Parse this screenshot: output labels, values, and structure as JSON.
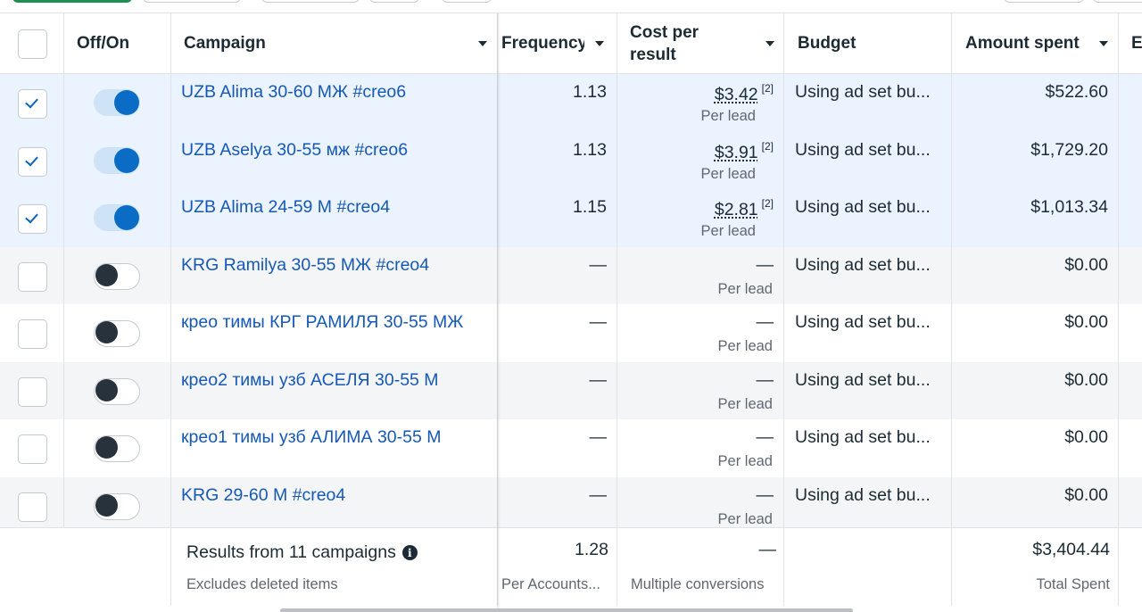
{
  "header": {
    "off_on": "Off/On",
    "campaign": "Campaign",
    "frequency": "Frequency",
    "cost_per_result_line1": "Cost per",
    "cost_per_result_line2": "result",
    "budget": "Budget",
    "amount_spent": "Amount spent",
    "next_col_initial": "E"
  },
  "rows": [
    {
      "selected": true,
      "active": true,
      "campaign": "UZB Alima 30-60 МЖ #creo6",
      "frequency": "1.13",
      "cost": "$3.42",
      "footnote": "[2]",
      "per": "Per lead",
      "budget": "Using ad set bu...",
      "amount": "$522.60"
    },
    {
      "selected": true,
      "active": true,
      "campaign": "UZB Aselya 30-55 мж #creo6",
      "frequency": "1.13",
      "cost": "$3.91",
      "footnote": "[2]",
      "per": "Per lead",
      "budget": "Using ad set bu...",
      "amount": "$1,729.20"
    },
    {
      "selected": true,
      "active": true,
      "campaign": "UZB Alima 24-59 M #creo4",
      "frequency": "1.15",
      "cost": "$2.81",
      "footnote": "[2]",
      "per": "Per lead",
      "budget": "Using ad set bu...",
      "amount": "$1,013.34"
    },
    {
      "selected": false,
      "active": false,
      "campaign": "KRG Ramilya 30-55 МЖ #creo4",
      "frequency": "—",
      "cost": "—",
      "footnote": "",
      "per": "Per lead",
      "budget": "Using ad set bu...",
      "amount": "$0.00"
    },
    {
      "selected": false,
      "active": false,
      "campaign": "крео тимы КРГ РАМИЛЯ 30-55 МЖ",
      "frequency": "—",
      "cost": "—",
      "footnote": "",
      "per": "Per lead",
      "budget": "Using ad set bu...",
      "amount": "$0.00"
    },
    {
      "selected": false,
      "active": false,
      "campaign": "крео2 тимы узб АСЕЛЯ 30-55 М",
      "frequency": "—",
      "cost": "—",
      "footnote": "",
      "per": "Per lead",
      "budget": "Using ad set bu...",
      "amount": "$0.00"
    },
    {
      "selected": false,
      "active": false,
      "campaign": "крео1 тимы узб АЛИМА 30-55 М",
      "frequency": "—",
      "cost": "—",
      "footnote": "",
      "per": "Per lead",
      "budget": "Using ad set bu...",
      "amount": "$0.00"
    },
    {
      "selected": false,
      "active": false,
      "campaign": "KRG 29-60 M #creo4",
      "frequency": "—",
      "cost": "—",
      "footnote": "",
      "per": "Per lead",
      "budget": "Using ad set bu...",
      "amount": "$0.00"
    }
  ],
  "footer": {
    "title": "Results from 11 campaigns",
    "info_icon": "i",
    "subtitle": "Excludes deleted items",
    "frequency": "1.28",
    "frequency_sub": "Per Accounts...",
    "cost": "—",
    "cost_sub": "Multiple conversions",
    "amount": "$3,404.44",
    "amount_sub": "Total Spent"
  },
  "colors": {
    "link": "#1558b5",
    "toggle_on": "#0a6cc4",
    "selected_row": "#ebf3fe",
    "alt_row": "#f4f5f7",
    "green_button": "#1f8f4e"
  }
}
